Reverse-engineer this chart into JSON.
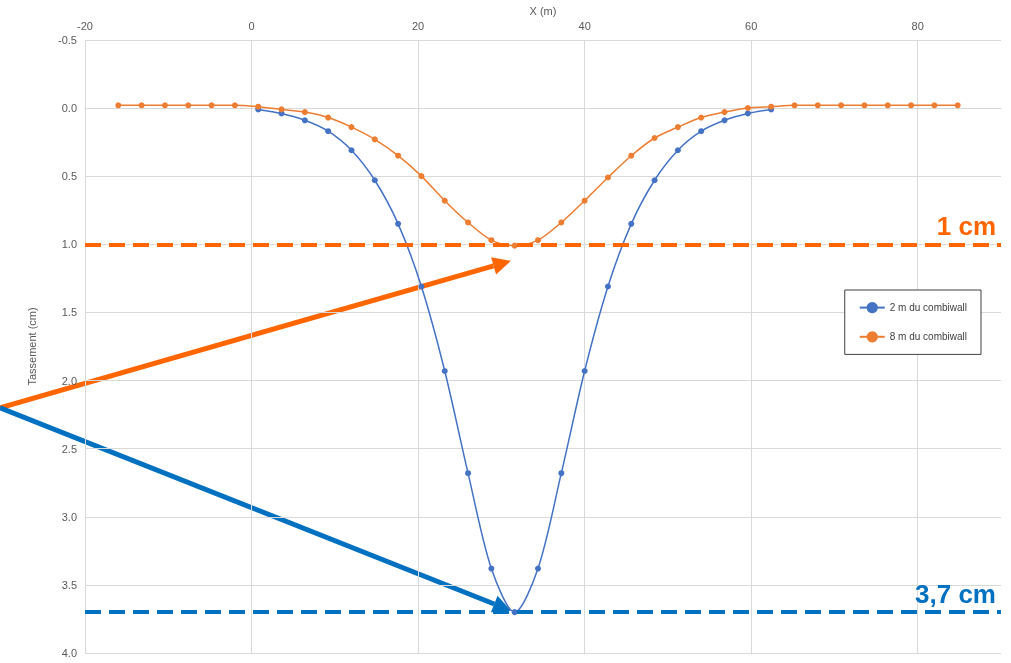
{
  "chart_data": {
    "type": "line",
    "xlabel": "X (m)",
    "ylabel": "Tassement (cm)",
    "xlim": [
      -20,
      90
    ],
    "xticks": [
      -20,
      0,
      20,
      40,
      60,
      80
    ],
    "ylim": [
      4.0,
      -0.5
    ],
    "yticks": [
      {
        "value": -0.5,
        "label": "-0.5"
      },
      {
        "value": 0,
        "label": "0.0"
      },
      {
        "value": 0.5,
        "label": "0.5"
      },
      {
        "value": 1,
        "label": "1.0"
      },
      {
        "value": 1.5,
        "label": "1.5"
      },
      {
        "value": 2,
        "label": "2.0"
      },
      {
        "value": 2.5,
        "label": "2.5"
      },
      {
        "value": 3,
        "label": "3.0"
      },
      {
        "value": 3.5,
        "label": "3.5"
      },
      {
        "value": 4,
        "label": "4.0"
      }
    ],
    "grid": true,
    "legend": "right",
    "marker": "circle",
    "series": [
      {
        "name": "2 m du combiwall",
        "color": "#4472c4",
        "x": [
          0.8,
          3.6,
          6.4,
          9.2,
          12,
          14.8,
          17.6,
          20.4,
          23.2,
          26,
          28.8,
          31.6,
          34.4,
          37.2,
          40,
          42.8,
          45.6,
          48.4,
          51.2,
          54,
          56.8,
          59.6,
          62.4
        ],
        "values": [
          0.01,
          0.04,
          0.09,
          0.17,
          0.31,
          0.53,
          0.85,
          1.31,
          1.93,
          2.68,
          3.38,
          3.7,
          3.38,
          2.68,
          1.93,
          1.31,
          0.85,
          0.53,
          0.31,
          0.17,
          0.09,
          0.04,
          0.01
        ]
      },
      {
        "name": "8 m du combiwall",
        "color": "#ed7d31",
        "x": [
          -16,
          -13.2,
          -10.4,
          -7.6,
          -4.8,
          -2,
          0.8,
          3.6,
          6.4,
          9.2,
          12,
          14.8,
          17.6,
          20.4,
          23.2,
          26,
          28.8,
          31.6,
          34.4,
          37.2,
          40,
          42.8,
          45.6,
          48.4,
          51.2,
          54,
          56.8,
          59.6,
          62.4,
          65.2,
          68,
          70.8,
          73.6,
          76.4,
          79.2,
          82,
          84.8
        ],
        "values": [
          -0.02,
          -0.02,
          -0.02,
          -0.02,
          -0.02,
          -0.02,
          -0.01,
          0.01,
          0.03,
          0.07,
          0.14,
          0.23,
          0.35,
          0.5,
          0.68,
          0.84,
          0.97,
          1.01,
          0.97,
          0.84,
          0.68,
          0.51,
          0.35,
          0.22,
          0.14,
          0.07,
          0.03,
          0,
          -0.01,
          -0.02,
          -0.02,
          -0.02,
          -0.02,
          -0.02,
          -0.02,
          -0.02,
          -0.02
        ]
      }
    ],
    "ref_lines": [
      {
        "axis": "y",
        "value": 1,
        "label": "1 cm",
        "color": "#ff6600",
        "line_style": "dashed"
      },
      {
        "axis": "y",
        "value": 3.7,
        "label": "3,7 cm",
        "color": "#0070c0",
        "line_style": "dashed"
      }
    ]
  }
}
